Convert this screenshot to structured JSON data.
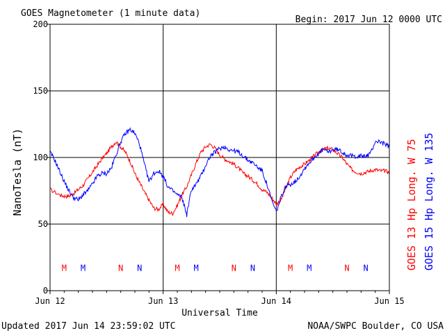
{
  "header": {
    "title": "GOES Magnetometer (1 minute data)",
    "begin": "Begin:  2017 Jun 12 0000 UTC"
  },
  "footer": {
    "updated": "Updated 2017 Jun 14 23:59:02 UTC",
    "credit": "NOAA/SWPC Boulder, CO USA"
  },
  "colors": {
    "goes13": "#ff0000",
    "goes15": "#0000ff",
    "grid": "#000000"
  },
  "chart_data": {
    "type": "line",
    "title": "GOES Magnetometer (1 minute data)",
    "xlabel": "Universal Time",
    "ylabel": "NanoTesla (nT)",
    "xlim": [
      0,
      72
    ],
    "ylim": [
      0,
      200
    ],
    "grid": true,
    "x_tick_labels": [
      "Jun 12",
      "Jun 13",
      "Jun 14",
      "Jun 15"
    ],
    "x_tick_hours": [
      0,
      24,
      48,
      72
    ],
    "y_ticks": [
      0,
      50,
      100,
      150,
      200
    ],
    "y_tick_labels": [
      "0",
      "50",
      "100",
      "150",
      "200"
    ],
    "series": [
      {
        "name": "GOES 13 Hp  Long. W 75",
        "color": "#ff0000",
        "x": [
          0,
          2,
          3,
          4,
          5,
          6,
          7,
          8,
          9,
          10,
          11,
          12,
          13,
          14,
          15,
          16,
          17,
          18,
          19,
          20,
          21,
          22,
          23,
          24,
          25,
          26,
          27,
          28,
          29,
          30,
          31,
          32,
          33,
          34,
          35,
          36,
          37,
          38,
          39,
          40,
          41,
          42,
          43,
          44,
          45,
          46,
          47,
          48,
          49,
          50,
          51,
          52,
          53,
          54,
          55,
          56,
          57,
          58,
          59,
          60,
          61,
          62,
          63,
          64,
          65,
          66,
          67,
          68,
          69,
          70,
          71,
          72
        ],
        "values": [
          76,
          72,
          71,
          71,
          73,
          76,
          79,
          84,
          89,
          94,
          99,
          103,
          108,
          112,
          108,
          104,
          97,
          88,
          81,
          74,
          68,
          62,
          61,
          65,
          59,
          58,
          64,
          72,
          78,
          87,
          96,
          104,
          108,
          110,
          107,
          102,
          99,
          97,
          95,
          92,
          88,
          86,
          83,
          80,
          76,
          74,
          70,
          65,
          68,
          77,
          85,
          90,
          93,
          95,
          98,
          101,
          104,
          106,
          107,
          106,
          103,
          100,
          95,
          91,
          89,
          88,
          89,
          90,
          91,
          90,
          90,
          89
        ]
      },
      {
        "name": "GOES 15 Hp  Long. W 135",
        "color": "#0000ff",
        "x": [
          0,
          1,
          2,
          3,
          4,
          5,
          6,
          7,
          8,
          9,
          10,
          11,
          12,
          13,
          14,
          15,
          16,
          17,
          18,
          19,
          20,
          21,
          22,
          23,
          24,
          25,
          26,
          27,
          28,
          29,
          30,
          31,
          32,
          33,
          34,
          35,
          36,
          37,
          38,
          39,
          40,
          41,
          42,
          43,
          44,
          45,
          46,
          47,
          48,
          49,
          50,
          51,
          52,
          53,
          54,
          55,
          56,
          57,
          58,
          59,
          60,
          61,
          62,
          63,
          64,
          65,
          66,
          67,
          68,
          69,
          70,
          71,
          72
        ],
        "values": [
          104,
          98,
          90,
          82,
          75,
          70,
          68,
          72,
          75,
          80,
          86,
          88,
          88,
          92,
          102,
          112,
          118,
          121,
          118,
          110,
          95,
          82,
          88,
          90,
          86,
          78,
          75,
          72,
          70,
          57,
          76,
          80,
          86,
          94,
          101,
          104,
          107,
          108,
          106,
          105,
          104,
          101,
          98,
          96,
          93,
          90,
          80,
          68,
          59,
          70,
          78,
          80,
          82,
          86,
          92,
          96,
          100,
          103,
          106,
          104,
          106,
          106,
          104,
          102,
          101,
          101,
          101,
          101,
          103,
          112,
          112,
          110,
          108
        ]
      }
    ],
    "markers": [
      {
        "label": "M",
        "color": "#ff0000",
        "hour": 3
      },
      {
        "label": "M",
        "color": "#0000ff",
        "hour": 7
      },
      {
        "label": "N",
        "color": "#ff0000",
        "hour": 15
      },
      {
        "label": "N",
        "color": "#0000ff",
        "hour": 19
      },
      {
        "label": "M",
        "color": "#ff0000",
        "hour": 27
      },
      {
        "label": "M",
        "color": "#0000ff",
        "hour": 31
      },
      {
        "label": "N",
        "color": "#ff0000",
        "hour": 39
      },
      {
        "label": "N",
        "color": "#0000ff",
        "hour": 43
      },
      {
        "label": "M",
        "color": "#ff0000",
        "hour": 51
      },
      {
        "label": "M",
        "color": "#0000ff",
        "hour": 55
      },
      {
        "label": "N",
        "color": "#ff0000",
        "hour": 63
      },
      {
        "label": "N",
        "color": "#0000ff",
        "hour": 67
      }
    ],
    "marker_level": 17
  }
}
